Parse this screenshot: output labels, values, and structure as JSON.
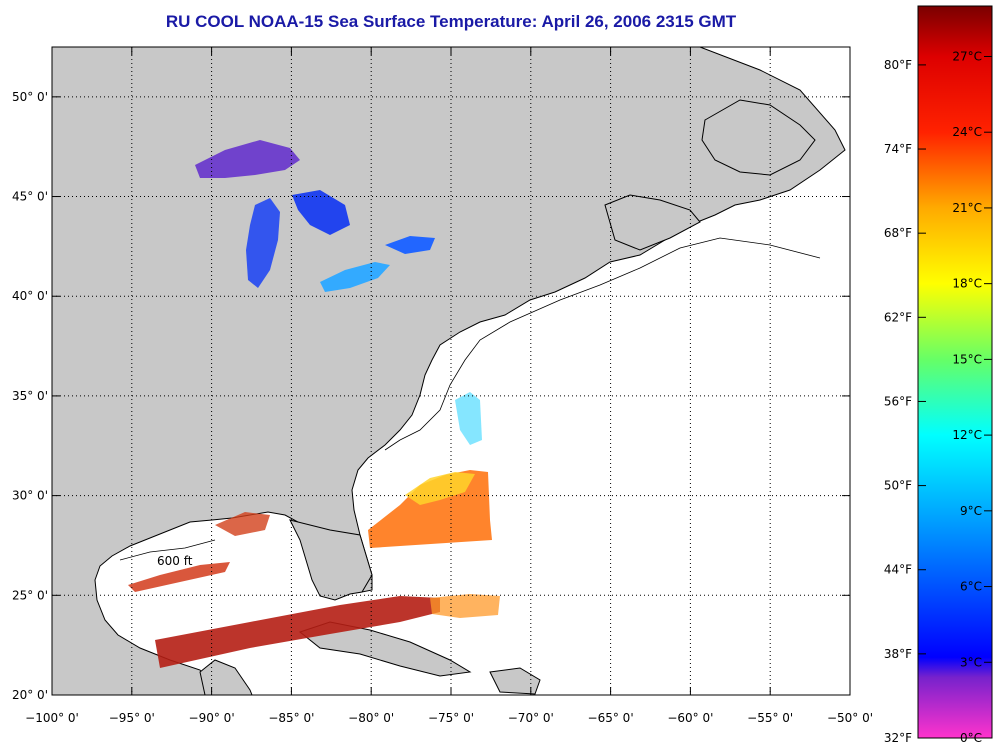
{
  "title": "RU COOL  NOAA-15  Sea Surface Temperature:  April 26, 2006 2315 GMT",
  "map": {
    "lon_range": [
      -100,
      -50
    ],
    "lat_range": [
      20,
      52.5
    ],
    "grid": true,
    "lon_ticks": [
      {
        "value": -100,
        "label": "−100° 0'"
      },
      {
        "value": -95,
        "label": "−95° 0'"
      },
      {
        "value": -90,
        "label": "−90° 0'"
      },
      {
        "value": -85,
        "label": "−85° 0'"
      },
      {
        "value": -80,
        "label": "−80° 0'"
      },
      {
        "value": -75,
        "label": "−75° 0'"
      },
      {
        "value": -70,
        "label": "−70° 0'"
      },
      {
        "value": -65,
        "label": "−65° 0'"
      },
      {
        "value": -60,
        "label": "−60° 0'"
      },
      {
        "value": -55,
        "label": "−55° 0'"
      },
      {
        "value": -50,
        "label": "−50° 0'"
      }
    ],
    "lat_ticks": [
      {
        "value": 20,
        "label": "20° 0'"
      },
      {
        "value": 25,
        "label": "25° 0'"
      },
      {
        "value": 30,
        "label": "30° 0'"
      },
      {
        "value": 35,
        "label": "35° 0'"
      },
      {
        "value": 40,
        "label": "40° 0'"
      },
      {
        "value": 45,
        "label": "45° 0'"
      },
      {
        "value": 50,
        "label": "50° 0'"
      }
    ],
    "contour_label": "600 ft",
    "colors": {
      "land": "#c8c8c8",
      "ocean": "#ffffff",
      "grid": "#000000",
      "coast": "#000000"
    }
  },
  "colorbar": {
    "range_c": [
      0,
      29
    ],
    "stops": [
      {
        "value": 0,
        "color": "#ff33cc"
      },
      {
        "value": 2.4,
        "color": "#7722cc"
      },
      {
        "value": 3.2,
        "color": "#0000ff"
      },
      {
        "value": 9,
        "color": "#00aaff"
      },
      {
        "value": 12,
        "color": "#00ffff"
      },
      {
        "value": 15,
        "color": "#66ff66"
      },
      {
        "value": 18,
        "color": "#ffff00"
      },
      {
        "value": 21,
        "color": "#ffaa00"
      },
      {
        "value": 24,
        "color": "#ff2200"
      },
      {
        "value": 27,
        "color": "#dd0000"
      },
      {
        "value": 29,
        "color": "#7a0000"
      }
    ],
    "celsius_ticks": [
      {
        "value": 0,
        "label": "0°C"
      },
      {
        "value": 3,
        "label": "3°C"
      },
      {
        "value": 6,
        "label": "6°C"
      },
      {
        "value": 9,
        "label": "9°C"
      },
      {
        "value": 12,
        "label": "12°C"
      },
      {
        "value": 15,
        "label": "15°C"
      },
      {
        "value": 18,
        "label": "18°C"
      },
      {
        "value": 21,
        "label": "21°C"
      },
      {
        "value": 24,
        "label": "24°C"
      },
      {
        "value": 27,
        "label": "27°C"
      }
    ],
    "fahrenheit_ticks": [
      {
        "value": 32,
        "label": "32°F"
      },
      {
        "value": 38,
        "label": "38°F"
      },
      {
        "value": 44,
        "label": "44°F"
      },
      {
        "value": 50,
        "label": "50°F"
      },
      {
        "value": 56,
        "label": "56°F"
      },
      {
        "value": 62,
        "label": "62°F"
      },
      {
        "value": 68,
        "label": "68°F"
      },
      {
        "value": 74,
        "label": "74°F"
      },
      {
        "value": 80,
        "label": "80°F"
      }
    ]
  }
}
